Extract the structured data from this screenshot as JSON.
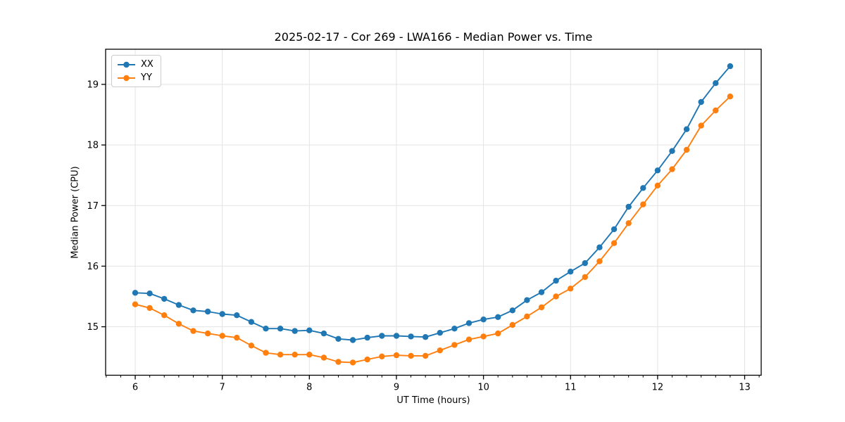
{
  "chart_data": {
    "type": "line",
    "title": "2025-02-17 - Cor 269 - LWA166 - Median Power vs. Time",
    "xlabel": "UT Time (hours)",
    "ylabel": "Median Power (CPU)",
    "x": [
      6.0,
      6.1667,
      6.3333,
      6.5,
      6.6667,
      6.8333,
      7.0,
      7.1667,
      7.3333,
      7.5,
      7.6667,
      7.8333,
      8.0,
      8.1667,
      8.3333,
      8.5,
      8.6667,
      8.8333,
      9.0,
      9.1667,
      9.3333,
      9.5,
      9.6667,
      9.8333,
      10.0,
      10.1667,
      10.3333,
      10.5,
      10.6667,
      10.8333,
      11.0,
      11.1667,
      11.3333,
      11.5,
      11.6667,
      11.8333,
      12.0,
      12.1667,
      12.3333,
      12.5,
      12.6667,
      12.8333
    ],
    "series": [
      {
        "name": "XX",
        "color": "#1f77b4",
        "values": [
          15.56,
          15.55,
          15.46,
          15.36,
          15.27,
          15.25,
          15.21,
          15.19,
          15.08,
          14.97,
          14.97,
          14.93,
          14.94,
          14.89,
          14.8,
          14.78,
          14.82,
          14.85,
          14.85,
          14.84,
          14.83,
          14.9,
          14.97,
          15.06,
          15.12,
          15.16,
          15.27,
          15.44,
          15.57,
          15.76,
          15.91,
          16.05,
          16.31,
          16.61,
          16.98,
          17.29,
          17.58,
          17.9,
          18.26,
          18.71,
          19.02,
          19.3
        ]
      },
      {
        "name": "YY",
        "color": "#ff7f0e",
        "values": [
          15.37,
          15.31,
          15.19,
          15.05,
          14.93,
          14.89,
          14.85,
          14.82,
          14.69,
          14.57,
          14.54,
          14.54,
          14.54,
          14.49,
          14.42,
          14.41,
          14.46,
          14.51,
          14.53,
          14.52,
          14.52,
          14.61,
          14.7,
          14.79,
          14.84,
          14.89,
          15.03,
          15.17,
          15.32,
          15.5,
          15.63,
          15.82,
          16.08,
          16.38,
          16.71,
          17.02,
          17.33,
          17.6,
          17.92,
          18.32,
          18.57,
          18.8
        ]
      }
    ],
    "xlim": [
      5.66,
      13.19
    ],
    "ylim": [
      14.2,
      19.58
    ],
    "xticks": [
      6,
      7,
      8,
      9,
      10,
      11,
      12,
      13
    ],
    "xtick_labels": [
      "6",
      "7",
      "8",
      "9",
      "10",
      "11",
      "12",
      "13"
    ],
    "yticks": [
      15,
      16,
      17,
      18,
      19
    ],
    "ytick_labels": [
      "15",
      "16",
      "17",
      "18",
      "19"
    ],
    "x_minor_step": 0.166667,
    "grid": true,
    "grid_color": "#e3e3e3",
    "spine_color": "#000000",
    "legend_position": "upper left",
    "marker": "o"
  }
}
